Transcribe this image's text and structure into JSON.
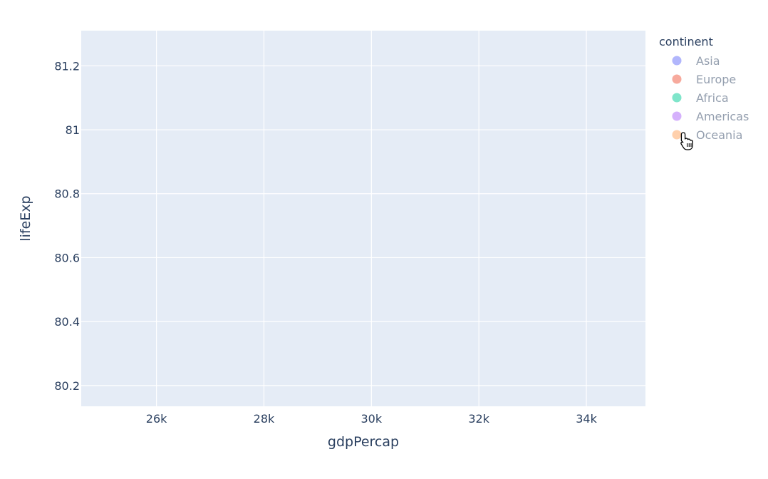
{
  "chart_data": {
    "type": "scatter",
    "title": "",
    "xlabel": "gdpPercap",
    "ylabel": "lifeExp",
    "xlim": [
      24600,
      35100
    ],
    "ylim": [
      80.135,
      81.31
    ],
    "x_ticks": [
      26000,
      28000,
      30000,
      32000,
      34000
    ],
    "x_tick_labels": [
      "26k",
      "28k",
      "30k",
      "32k",
      "34k"
    ],
    "y_ticks": [
      80.2,
      80.4,
      80.6,
      80.8,
      81,
      81.2
    ],
    "y_tick_labels": [
      "80.2",
      "80.4",
      "80.6",
      "80.8",
      "81",
      "81.2"
    ],
    "grid": true,
    "legend": {
      "title": "continent",
      "placement": "right",
      "entries": [
        {
          "name": "Asia",
          "color": "#636efa",
          "visible": false
        },
        {
          "name": "Europe",
          "color": "#EF553B",
          "visible": false
        },
        {
          "name": "Africa",
          "color": "#00cc96",
          "visible": false
        },
        {
          "name": "Americas",
          "color": "#ab63fa",
          "visible": false
        },
        {
          "name": "Oceania",
          "color": "#FFA15A",
          "visible": false
        }
      ]
    },
    "series": [],
    "plot_bgcolor": "#e5ecf6",
    "grid_color": "#ffffff",
    "text_color": "#2a3f5f"
  }
}
